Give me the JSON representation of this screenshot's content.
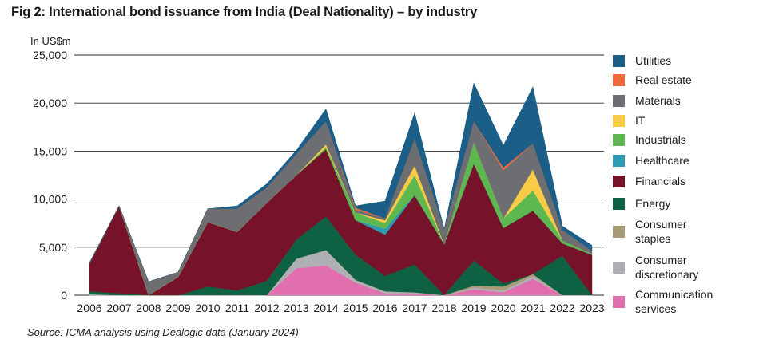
{
  "title": "Fig 2: International bond issuance from India (Deal Nationality) – by industry",
  "unit_label": "In US$m",
  "source": "Source: ICMA analysis using Dealogic data (January 2024)",
  "chart_data": {
    "type": "area",
    "stacked": true,
    "x": [
      "2006",
      "2007",
      "2008",
      "2009",
      "2010",
      "2011",
      "2012",
      "2013",
      "2014",
      "2015",
      "2016",
      "2017",
      "2018",
      "2019",
      "2020",
      "2021",
      "2022",
      "2023"
    ],
    "ylim": [
      0,
      25000
    ],
    "yticks": [
      0,
      5000,
      10000,
      15000,
      20000,
      25000
    ],
    "ytick_labels": [
      "0",
      "5,000",
      "10,000",
      "15,000",
      "20,000",
      "25,000"
    ],
    "grid": "horizontal",
    "legend_position": "right",
    "series": [
      {
        "name": "Communication services",
        "color": "#e16fae",
        "values": [
          0,
          0,
          0,
          0,
          0,
          0,
          0,
          2800,
          3100,
          1300,
          200,
          200,
          0,
          600,
          300,
          1700,
          0,
          0
        ]
      },
      {
        "name": "Consumer discretionary",
        "color": "#aeb0b3",
        "values": [
          100,
          0,
          0,
          0,
          0,
          0,
          0,
          1000,
          1600,
          300,
          200,
          100,
          0,
          200,
          200,
          300,
          0,
          0
        ]
      },
      {
        "name": "Consumer staples",
        "color": "#a89b76",
        "values": [
          0,
          0,
          0,
          0,
          0,
          0,
          0,
          0,
          0,
          0,
          0,
          0,
          0,
          200,
          400,
          200,
          0,
          0
        ]
      },
      {
        "name": "Energy",
        "color": "#0e6142",
        "values": [
          300,
          200,
          0,
          0,
          900,
          500,
          1500,
          2000,
          3500,
          2600,
          1600,
          2900,
          0,
          2600,
          300,
          0,
          4100,
          0
        ]
      },
      {
        "name": "Financials",
        "color": "#76132a",
        "values": [
          2900,
          9100,
          0,
          1900,
          6700,
          6100,
          8100,
          6700,
          7000,
          3600,
          4300,
          7200,
          5300,
          10100,
          5800,
          6600,
          1300,
          4200
        ]
      },
      {
        "name": "Healthcare",
        "color": "#2c9bb3",
        "values": [
          0,
          0,
          0,
          0,
          0,
          0,
          0,
          0,
          0,
          0,
          600,
          0,
          0,
          0,
          0,
          0,
          0,
          0
        ]
      },
      {
        "name": "Industrials",
        "color": "#5cb84f",
        "values": [
          0,
          0,
          0,
          0,
          0,
          0,
          0,
          0,
          200,
          800,
          600,
          2100,
          0,
          2200,
          1000,
          2100,
          300,
          100
        ]
      },
      {
        "name": "IT",
        "color": "#f7cb46",
        "values": [
          0,
          0,
          0,
          0,
          0,
          0,
          0,
          0,
          300,
          0,
          300,
          1000,
          0,
          0,
          0,
          2200,
          0,
          0
        ]
      },
      {
        "name": "Materials",
        "color": "#6d6e71",
        "values": [
          0,
          0,
          1400,
          500,
          1400,
          2400,
          1600,
          2200,
          2400,
          300,
          200,
          2800,
          1600,
          2200,
          5000,
          2700,
          1100,
          300
        ]
      },
      {
        "name": "Real estate",
        "color": "#ef6a3a",
        "values": [
          0,
          0,
          0,
          0,
          0,
          0,
          0,
          0,
          0,
          200,
          0,
          0,
          0,
          0,
          300,
          0,
          0,
          0
        ]
      },
      {
        "name": "Utilities",
        "color": "#1b5e87",
        "values": [
          100,
          0,
          0,
          0,
          0,
          300,
          400,
          400,
          1300,
          200,
          1800,
          2700,
          0,
          4000,
          2300,
          5900,
          400,
          600
        ]
      }
    ],
    "legend": [
      {
        "key": "Utilities",
        "lines": [
          "Utilities"
        ]
      },
      {
        "key": "Real estate",
        "lines": [
          "Real estate"
        ]
      },
      {
        "key": "Materials",
        "lines": [
          "Materials"
        ]
      },
      {
        "key": "IT",
        "lines": [
          "IT"
        ]
      },
      {
        "key": "Industrials",
        "lines": [
          "Industrials"
        ]
      },
      {
        "key": "Healthcare",
        "lines": [
          "Healthcare"
        ]
      },
      {
        "key": "Financials",
        "lines": [
          "Financials"
        ]
      },
      {
        "key": "Energy",
        "lines": [
          "Energy"
        ]
      },
      {
        "key": "Consumer staples",
        "lines": [
          "Consumer",
          "staples"
        ]
      },
      {
        "key": "Consumer discretionary",
        "lines": [
          "Consumer",
          "discretionary"
        ]
      },
      {
        "key": "Communication services",
        "lines": [
          "Communication",
          "services"
        ]
      }
    ]
  }
}
